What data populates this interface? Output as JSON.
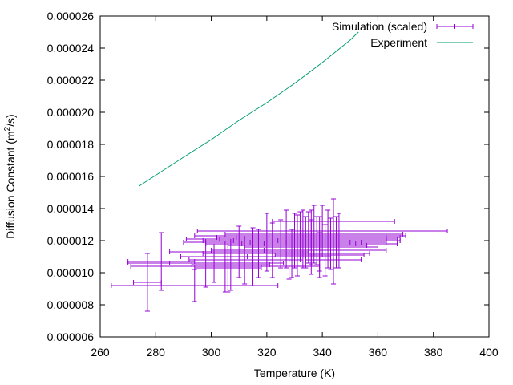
{
  "chart_data": {
    "type": "scatter",
    "xlabel": "Temperature (K)",
    "ylabel": "Diffusion Constant (m²/s)",
    "ylabel_parts": {
      "pre": "Diffusion Constant (m",
      "sup": "2",
      "post": "/s)"
    },
    "xlim": [
      260,
      400
    ],
    "ylim": [
      6e-06,
      2.6e-05
    ],
    "xticks": [
      260,
      280,
      300,
      320,
      340,
      360,
      380,
      400
    ],
    "xtick_labels": [
      "260",
      "280",
      "300",
      "320",
      "340",
      "360",
      "380",
      "400"
    ],
    "yticks": [
      6e-06,
      8e-06,
      1e-05,
      1.2e-05,
      1.4e-05,
      1.6e-05,
      1.8e-05,
      2e-05,
      2.2e-05,
      2.4e-05,
      2.6e-05
    ],
    "ytick_labels": [
      "0.000006",
      "0.000008",
      "0.000010",
      "0.000012",
      "0.000014",
      "0.000016",
      "0.000018",
      "0.000020",
      "0.000022",
      "0.000024",
      "0.000026"
    ],
    "grid": false,
    "legend_position": "top-right",
    "series": [
      {
        "name": "Simulation (scaled)",
        "kind": "errorbars",
        "color": "#9400d3",
        "points": [
          {
            "x": 294,
            "y": 9.2e-06,
            "xerr": 30,
            "yerr": 1e-06
          },
          {
            "x": 277,
            "y": 9.4e-06,
            "xerr": 5,
            "yerr": 1.8e-06
          },
          {
            "x": 282,
            "y": 1.07e-05,
            "xerr": 12,
            "yerr": 1.8e-06
          },
          {
            "x": 298,
            "y": 1.06e-05,
            "xerr": 28,
            "yerr": 1.5e-06
          },
          {
            "x": 305,
            "y": 1.04e-05,
            "xerr": 34,
            "yerr": 1.6e-06
          },
          {
            "x": 306,
            "y": 1.03e-05,
            "xerr": 12,
            "yerr": 1.5e-06
          },
          {
            "x": 301,
            "y": 1.06e-05,
            "xerr": 16,
            "yerr": 1.2e-06
          },
          {
            "x": 307,
            "y": 1.05e-05,
            "xerr": 14,
            "yerr": 1.6e-06
          },
          {
            "x": 310,
            "y": 1.13e-05,
            "xerr": 25,
            "yerr": 1.6e-06
          },
          {
            "x": 312,
            "y": 1.08e-05,
            "xerr": 20,
            "yerr": 1.5e-06
          },
          {
            "x": 315,
            "y": 1.1e-05,
            "xerr": 26,
            "yerr": 1.8e-06
          },
          {
            "x": 317,
            "y": 1.12e-05,
            "xerr": 20,
            "yerr": 1.5e-06
          },
          {
            "x": 320,
            "y": 1.19e-05,
            "xerr": 30,
            "yerr": 1.8e-06
          },
          {
            "x": 322,
            "y": 1.14e-05,
            "xerr": 22,
            "yerr": 1.7e-06
          },
          {
            "x": 325,
            "y": 1.18e-05,
            "xerr": 27,
            "yerr": 1.5e-06
          },
          {
            "x": 327,
            "y": 1.21e-05,
            "xerr": 36,
            "yerr": 1.8e-06
          },
          {
            "x": 329,
            "y": 1.12e-05,
            "xerr": 28,
            "yerr": 1.5e-06
          },
          {
            "x": 330,
            "y": 1.2e-05,
            "xerr": 33,
            "yerr": 1.7e-06
          },
          {
            "x": 331,
            "y": 1.17e-05,
            "xerr": 25,
            "yerr": 1.9e-06
          },
          {
            "x": 332,
            "y": 1.23e-05,
            "xerr": 38,
            "yerr": 1.5e-06
          },
          {
            "x": 333,
            "y": 1.21e-05,
            "xerr": 30,
            "yerr": 1.8e-06
          },
          {
            "x": 334,
            "y": 1.19e-05,
            "xerr": 20,
            "yerr": 1.6e-06
          },
          {
            "x": 335,
            "y": 1.22e-05,
            "xerr": 33,
            "yerr": 1.6e-06
          },
          {
            "x": 336,
            "y": 1.16e-05,
            "xerr": 24,
            "yerr": 1.7e-06
          },
          {
            "x": 337,
            "y": 1.24e-05,
            "xerr": 32,
            "yerr": 1.8e-06
          },
          {
            "x": 338,
            "y": 1.2e-05,
            "xerr": 30,
            "yerr": 1.5e-06
          },
          {
            "x": 339,
            "y": 1.18e-05,
            "xerr": 28,
            "yerr": 1.7e-06
          },
          {
            "x": 340,
            "y": 1.26e-05,
            "xerr": 45,
            "yerr": 1.6e-06
          },
          {
            "x": 341,
            "y": 1.14e-05,
            "xerr": 22,
            "yerr": 1.6e-06
          },
          {
            "x": 342,
            "y": 1.21e-05,
            "xerr": 25,
            "yerr": 1.8e-06
          },
          {
            "x": 343,
            "y": 1.18e-05,
            "xerr": 24,
            "yerr": 1.6e-06
          },
          {
            "x": 344,
            "y": 1.32e-05,
            "xerr": 22,
            "yerr": 1.4e-06
          },
          {
            "x": 345,
            "y": 1.19e-05,
            "xerr": 18,
            "yerr": 1.6e-06
          },
          {
            "x": 346,
            "y": 1.2e-05,
            "xerr": 22,
            "yerr": 1.7e-06
          },
          {
            "x": 328,
            "y": 1.1e-05,
            "xerr": 15,
            "yerr": 1.4e-06
          },
          {
            "x": 336,
            "y": 1.22e-05,
            "xerr": 27,
            "yerr": 1.7e-06
          },
          {
            "x": 339,
            "y": 1.11e-05,
            "xerr": 16,
            "yerr": 1.4e-06
          },
          {
            "x": 344,
            "y": 1.08e-05,
            "xerr": 10,
            "yerr": 1.5e-06
          }
        ]
      },
      {
        "name": "Experiment",
        "kind": "line",
        "color": "#009e73",
        "x": [
          274,
          290,
          300,
          310,
          320,
          330,
          340,
          350,
          353
        ],
        "y": [
          1.54e-05,
          1.72e-05,
          1.83e-05,
          1.95e-05,
          2.06e-05,
          2.18e-05,
          2.31e-05,
          2.45e-05,
          2.5e-05
        ]
      }
    ]
  }
}
